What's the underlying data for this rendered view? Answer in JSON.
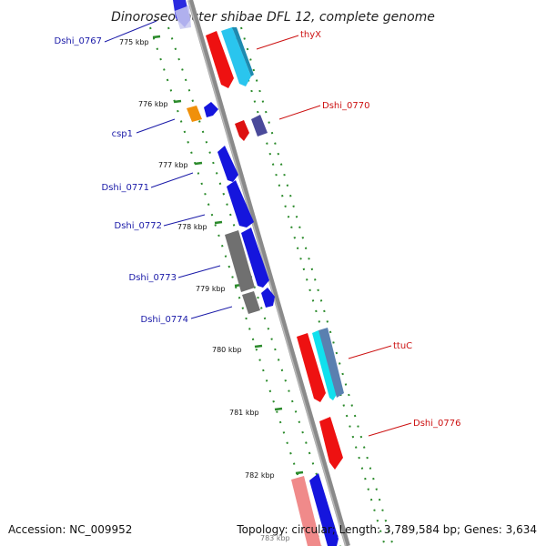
{
  "title": "Dinoroseobacter shibae DFL 12, complete genome",
  "accession": "Accession: NC_009952",
  "topology": "Topology: circular; Length: 3,789,584 bp; Genes: 3,634",
  "colors": {
    "backbone": "#8a8a8a",
    "tick": "#2a8a2a",
    "label_blue": "#1a1aa8",
    "label_red": "#cc1111"
  },
  "ticks": [
    "775 kbp",
    "776 kbp",
    "777 kbp",
    "778 kbp",
    "779 kbp",
    "780 kbp",
    "781 kbp",
    "782 kbp",
    "783 kbp"
  ],
  "gene_labels": {
    "left": [
      "Dshi_0767",
      "csp1",
      "Dshi_0771",
      "Dshi_0772",
      "Dshi_0773",
      "Dshi_0774"
    ],
    "right": [
      "thyX",
      "Dshi_0770",
      "ttuC",
      "Dshi_0776"
    ]
  }
}
